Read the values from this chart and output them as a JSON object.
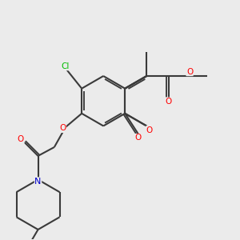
{
  "bg_color": "#ebebeb",
  "bond_color": "#3a3a3a",
  "bond_width": 1.5,
  "atom_colors": {
    "O": "#ff0000",
    "N": "#0000cc",
    "Cl": "#00bb00",
    "C": "#3a3a3a"
  },
  "font_size": 7.5,
  "fig_size": [
    3.0,
    3.0
  ],
  "dpi": 100,
  "BL": 1.05
}
